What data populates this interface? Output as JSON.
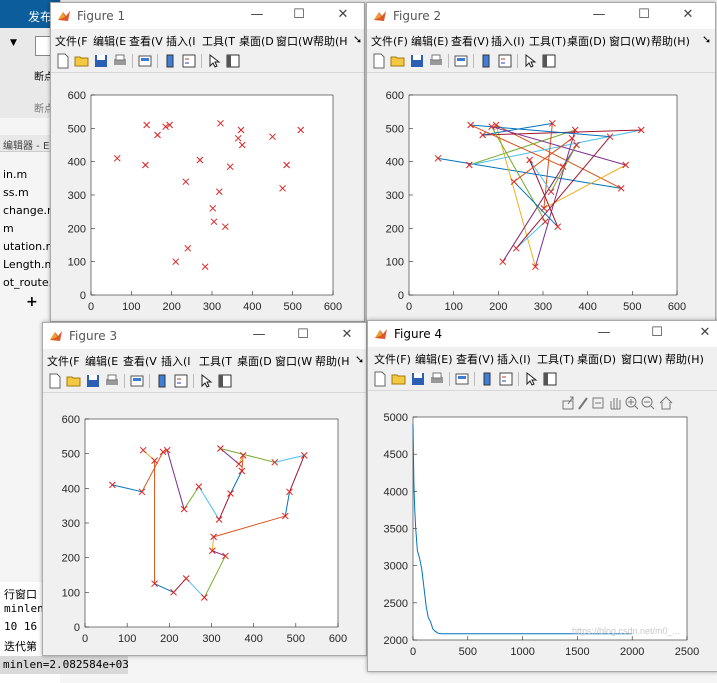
{
  "matlab": {
    "publish_tab": "发布",
    "breakpoint_label": "断点",
    "breakpoint_group": "断点",
    "editor_title": "编辑器 - E",
    "files": [
      "in.m",
      "ss.m",
      "change.m",
      "m",
      "utation.m",
      "Length.m",
      "ot_route.m"
    ],
    "add_symbol": "+",
    "cmd_title": "行窗口",
    "cmd_lines": [
      "minlen",
      "10   16",
      "迭代第"
    ],
    "minlen_text": "minlen=2.082584e+03"
  },
  "menus_full": [
    "文件(F)",
    "编辑(E)",
    "查看(V)",
    "插入(I)",
    "工具(T)",
    "桌面(D)",
    "窗口(W)",
    "帮助(H)"
  ],
  "menus_trunc": [
    "文件(F",
    "编辑(E",
    "查看(V",
    "插入(I",
    "工具(T",
    "桌面(D",
    "窗口(W",
    "帮助(H"
  ],
  "figures": [
    {
      "title": "Figure 1"
    },
    {
      "title": "Figure 2"
    },
    {
      "title": "Figure 3"
    },
    {
      "title": "Figure 4"
    }
  ],
  "colors": {
    "marker": "#e02020",
    "convergence": "#0072bd"
  },
  "chart_data": [
    {
      "figure": "Figure 1",
      "type": "scatter",
      "x": [
        65,
        135,
        138,
        165,
        185,
        195,
        210,
        235,
        240,
        270,
        283,
        302,
        305,
        318,
        321,
        333,
        345,
        365,
        372,
        375,
        450,
        475,
        485,
        520
      ],
      "y": [
        410,
        390,
        510,
        480,
        505,
        510,
        100,
        340,
        140,
        405,
        85,
        260,
        220,
        310,
        515,
        205,
        385,
        470,
        495,
        450,
        475,
        320,
        390,
        495
      ],
      "xlim": [
        0,
        600
      ],
      "ylim": [
        0,
        600
      ],
      "xticks": [
        0,
        100,
        200,
        300,
        400,
        500,
        600
      ],
      "yticks": [
        0,
        100,
        200,
        300,
        400,
        500,
        600
      ]
    },
    {
      "figure": "Figure 2",
      "type": "line",
      "description_series": "random initial tour with cross markers",
      "x": [
        65,
        475,
        195,
        283,
        372,
        135,
        520,
        165,
        321,
        302,
        485,
        185,
        305,
        240,
        450,
        138,
        345,
        210,
        375,
        318,
        270,
        333,
        235,
        365
      ],
      "y": [
        410,
        320,
        510,
        85,
        495,
        390,
        495,
        480,
        515,
        260,
        390,
        505,
        220,
        140,
        475,
        510,
        385,
        100,
        450,
        310,
        405,
        205,
        340,
        470
      ],
      "xlim": [
        0,
        600
      ],
      "ylim": [
        0,
        600
      ],
      "xticks": [
        0,
        100,
        200,
        300,
        400,
        500,
        600
      ],
      "yticks": [
        0,
        100,
        200,
        300,
        400,
        500,
        600
      ]
    },
    {
      "figure": "Figure 3",
      "type": "line",
      "description_series": "optimized tour",
      "x": [
        65,
        135,
        185,
        195,
        235,
        270,
        318,
        345,
        372,
        375,
        365,
        321,
        450,
        520,
        485,
        475,
        305,
        302,
        333,
        283,
        240,
        210,
        165,
        165,
        138
      ],
      "y": [
        410,
        390,
        505,
        510,
        340,
        405,
        310,
        385,
        450,
        495,
        470,
        515,
        475,
        495,
        390,
        320,
        260,
        220,
        205,
        85,
        140,
        100,
        125,
        480,
        510
      ],
      "xlim": [
        0,
        600
      ],
      "ylim": [
        0,
        600
      ],
      "xticks": [
        0,
        100,
        200,
        300,
        400,
        500,
        600
      ],
      "yticks": [
        0,
        100,
        200,
        300,
        400,
        500,
        600
      ]
    },
    {
      "figure": "Figure 4",
      "type": "line",
      "x": [
        0,
        8,
        15,
        25,
        40,
        60,
        80,
        100,
        120,
        140,
        160,
        180,
        200,
        230,
        260,
        300,
        400,
        600,
        1000,
        1500,
        2000
      ],
      "y": [
        4900,
        4100,
        3800,
        3500,
        3200,
        3100,
        2950,
        2700,
        2450,
        2300,
        2250,
        2150,
        2120,
        2090,
        2085,
        2083,
        2083,
        2083,
        2083,
        2083,
        2083
      ],
      "xlim": [
        0,
        2500
      ],
      "ylim": [
        2000,
        5000
      ],
      "xticks": [
        0,
        500,
        1000,
        1500,
        2000,
        2500
      ],
      "yticks": [
        2000,
        2500,
        3000,
        3500,
        4000,
        4500,
        5000
      ],
      "watermark": "https://blog.csdn.net/m0_..."
    }
  ]
}
